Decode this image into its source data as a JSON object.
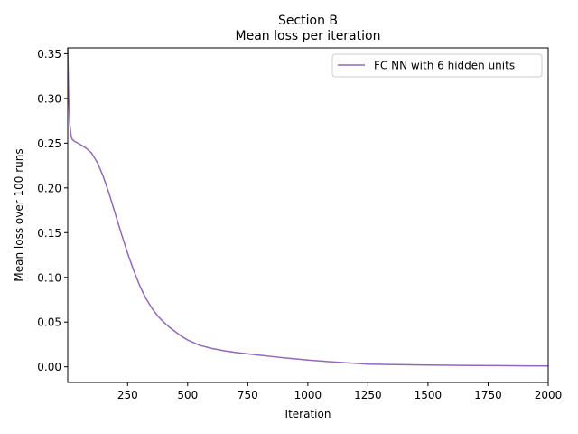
{
  "chart_data": {
    "type": "line",
    "title": "Section B",
    "subtitle": "Mean loss per iteration",
    "xlabel": "Iteration",
    "ylabel": "Mean loss over 100 runs",
    "xlim": [
      1,
      2000
    ],
    "ylim": [
      -0.0175,
      0.3565
    ],
    "xticks": [
      250,
      500,
      750,
      1000,
      1250,
      1500,
      1750,
      2000
    ],
    "xtick_labels": [
      "250",
      "500",
      "750",
      "1000",
      "1250",
      "1500",
      "1750",
      "2000"
    ],
    "yticks": [
      0.0,
      0.05,
      0.1,
      0.15,
      0.2,
      0.25,
      0.3,
      0.35
    ],
    "ytick_labels": [
      "0.00",
      "0.05",
      "0.10",
      "0.15",
      "0.20",
      "0.25",
      "0.30",
      "0.35"
    ],
    "grid": false,
    "legend_position": "upper right",
    "series": [
      {
        "name": "FC NN with 6 hidden units",
        "color": "#9467bd",
        "x": [
          1,
          5,
          10,
          15,
          20,
          30,
          50,
          75,
          100,
          125,
          150,
          175,
          200,
          225,
          250,
          275,
          300,
          325,
          350,
          375,
          400,
          425,
          450,
          475,
          500,
          550,
          600,
          650,
          700,
          750,
          800,
          850,
          900,
          1000,
          1100,
          1200,
          1250,
          1300,
          1400,
          1500,
          1600,
          1700,
          1800,
          1900,
          2000
        ],
        "y": [
          0.356,
          0.3,
          0.27,
          0.258,
          0.254,
          0.252,
          0.249,
          0.245,
          0.239,
          0.228,
          0.212,
          0.192,
          0.17,
          0.148,
          0.127,
          0.108,
          0.091,
          0.077,
          0.066,
          0.057,
          0.05,
          0.044,
          0.039,
          0.034,
          0.03,
          0.024,
          0.0205,
          0.018,
          0.016,
          0.0145,
          0.013,
          0.0115,
          0.01,
          0.0075,
          0.0055,
          0.0038,
          0.003,
          0.0027,
          0.0023,
          0.002,
          0.0017,
          0.0015,
          0.0013,
          0.0011,
          0.001
        ]
      }
    ]
  }
}
